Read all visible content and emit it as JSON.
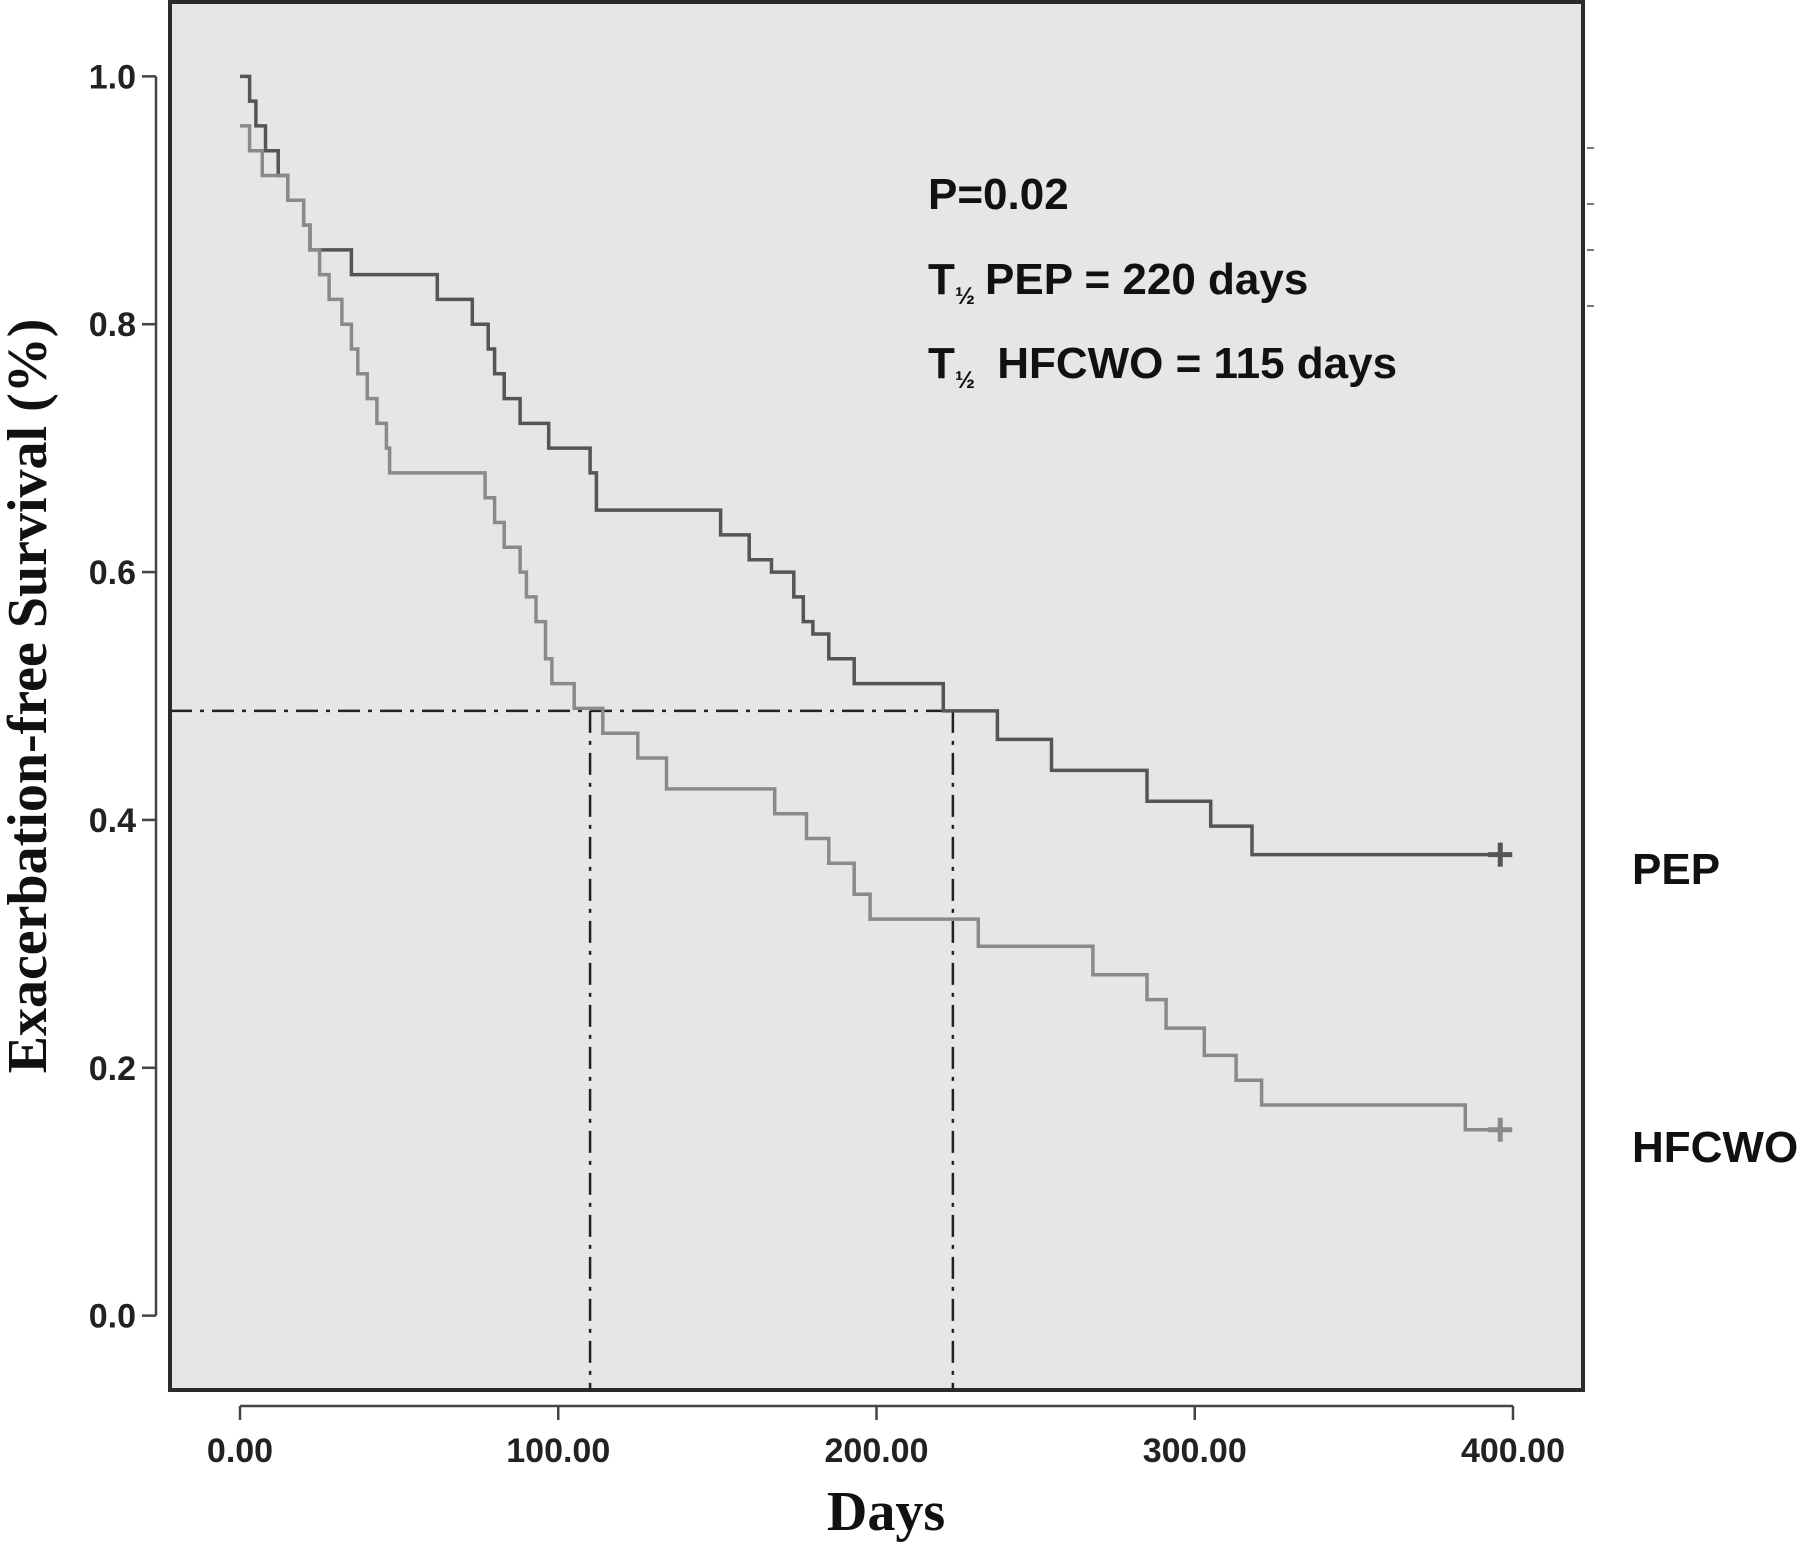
{
  "chart_data": {
    "type": "line",
    "subtype": "kaplan-meier step",
    "title": "",
    "xlabel": "Days",
    "ylabel": "Exacerbation-free Survival (%)",
    "xlim": [
      -22,
      422
    ],
    "ylim": [
      -0.06,
      1.06
    ],
    "xticks": [
      0,
      100,
      200,
      300,
      400
    ],
    "xtick_labels": [
      "0.00",
      "100.00",
      "200.00",
      "300.00",
      "400.00"
    ],
    "yticks": [
      0.0,
      0.2,
      0.4,
      0.6,
      0.8,
      1.0
    ],
    "ytick_labels": [
      "0.0",
      "0.2",
      "0.4",
      "0.6",
      "0.8",
      "1.0"
    ],
    "grid": false,
    "background": "#e6e6e6",
    "annotations": {
      "p_value": "P=0.02",
      "line2_T": "T",
      "line2_sub": "½",
      "line2_rest": "PEP = 220 days",
      "line3_T": "T",
      "line3_sub": "½",
      "line3_rest": " HFCWO = 115 days"
    },
    "reference_lines": {
      "horizontal_y": 0.488,
      "horizontal_x_to": 225,
      "vertical_x": [
        110,
        224
      ]
    },
    "series": [
      {
        "name": "PEP",
        "color": "#555555",
        "censor_x": 396,
        "steps": [
          [
            0,
            1.0
          ],
          [
            3,
            0.98
          ],
          [
            5,
            0.96
          ],
          [
            8,
            0.94
          ],
          [
            12,
            0.92
          ],
          [
            15,
            0.9
          ],
          [
            20,
            0.88
          ],
          [
            22,
            0.86
          ],
          [
            35,
            0.84
          ],
          [
            62,
            0.82
          ],
          [
            73,
            0.8
          ],
          [
            78,
            0.78
          ],
          [
            80,
            0.76
          ],
          [
            83,
            0.74
          ],
          [
            88,
            0.72
          ],
          [
            97,
            0.7
          ],
          [
            110,
            0.68
          ],
          [
            112,
            0.65
          ],
          [
            151,
            0.63
          ],
          [
            160,
            0.61
          ],
          [
            167,
            0.6
          ],
          [
            174,
            0.58
          ],
          [
            177,
            0.56
          ],
          [
            180,
            0.55
          ],
          [
            185,
            0.53
          ],
          [
            193,
            0.51
          ],
          [
            221,
            0.488
          ],
          [
            238,
            0.465
          ],
          [
            255,
            0.44
          ],
          [
            285,
            0.415
          ],
          [
            305,
            0.395
          ],
          [
            318,
            0.372
          ],
          [
            396,
            0.372
          ]
        ]
      },
      {
        "name": "HFCWO",
        "color": "#8a8a8a",
        "censor_x": 396,
        "steps": [
          [
            0,
            0.96
          ],
          [
            3,
            0.94
          ],
          [
            7,
            0.92
          ],
          [
            15,
            0.9
          ],
          [
            20,
            0.88
          ],
          [
            22,
            0.86
          ],
          [
            25,
            0.84
          ],
          [
            28,
            0.82
          ],
          [
            32,
            0.8
          ],
          [
            35,
            0.78
          ],
          [
            37,
            0.76
          ],
          [
            40,
            0.74
          ],
          [
            43,
            0.72
          ],
          [
            46,
            0.7
          ],
          [
            47,
            0.68
          ],
          [
            77,
            0.66
          ],
          [
            80,
            0.64
          ],
          [
            83,
            0.62
          ],
          [
            88,
            0.6
          ],
          [
            90,
            0.58
          ],
          [
            93,
            0.56
          ],
          [
            96,
            0.53
          ],
          [
            98,
            0.51
          ],
          [
            105,
            0.49
          ],
          [
            114,
            0.47
          ],
          [
            125,
            0.45
          ],
          [
            134,
            0.425
          ],
          [
            168,
            0.405
          ],
          [
            178,
            0.385
          ],
          [
            185,
            0.365
          ],
          [
            193,
            0.34
          ],
          [
            198,
            0.32
          ],
          [
            232,
            0.298
          ],
          [
            268,
            0.275
          ],
          [
            285,
            0.255
          ],
          [
            291,
            0.232
          ],
          [
            303,
            0.21
          ],
          [
            313,
            0.19
          ],
          [
            321,
            0.17
          ],
          [
            385,
            0.15
          ],
          [
            396,
            0.15
          ]
        ]
      }
    ]
  }
}
